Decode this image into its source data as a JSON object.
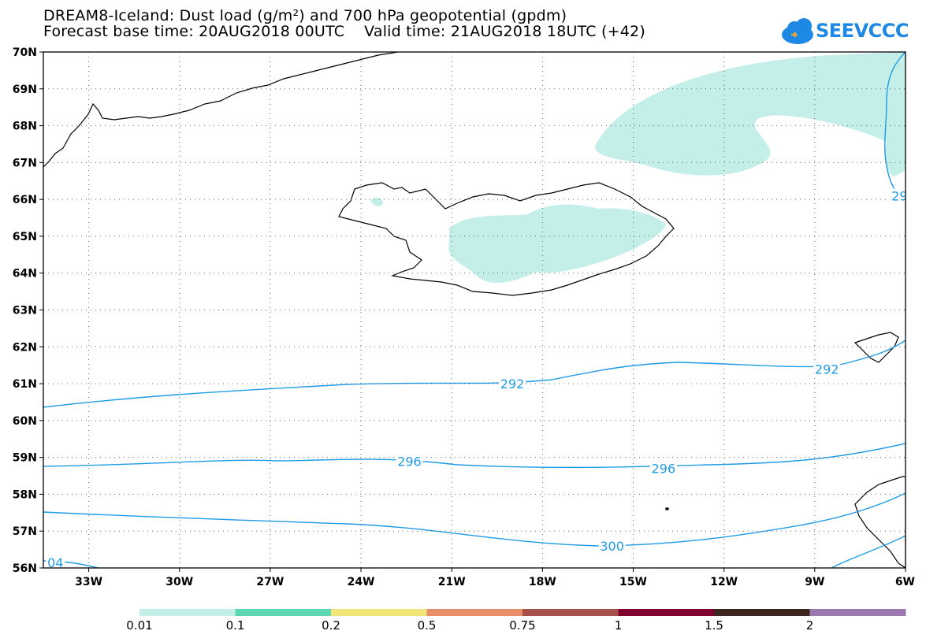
{
  "header": {
    "title_line1": "DREAM8-Iceland: Dust load (g/m²) and 700 hPa geopotential (gpdm)",
    "title_line2": "Forecast base time: 20AUG2018 00UTC    Valid time: 21AUG2018 18UTC (+42)"
  },
  "logo": {
    "text": "SEEVCCC",
    "icon": "cloud-icon",
    "color": "#1e88e5"
  },
  "map": {
    "lat_labels": [
      "70N",
      "69N",
      "68N",
      "67N",
      "66N",
      "65N",
      "64N",
      "63N",
      "62N",
      "61N",
      "60N",
      "59N",
      "58N",
      "57N",
      "56N"
    ],
    "lon_labels": [
      "33W",
      "30W",
      "27W",
      "24W",
      "21W",
      "18W",
      "15W",
      "12W",
      "9W",
      "6W"
    ],
    "contour_color": "#1e9be6",
    "dust_color": "#c4efe9",
    "contour_labels": [
      {
        "text": "292",
        "lon": -19.0,
        "lat": 61.0
      },
      {
        "text": "292",
        "lon": -8.6,
        "lat": 61.4
      },
      {
        "text": "296",
        "lon": -22.4,
        "lat": 58.9
      },
      {
        "text": "296",
        "lon": -14.0,
        "lat": 58.7
      },
      {
        "text": "300",
        "lon": -15.7,
        "lat": 56.6
      },
      {
        "text": "29",
        "lon": -6.2,
        "lat": 66.1
      },
      {
        "text": "04",
        "lon": -34.1,
        "lat": 56.15
      }
    ]
  },
  "colorbar": {
    "labels": [
      "0.01",
      "0.1",
      "0.2",
      "0.5",
      "0.75",
      "1",
      "1.5",
      "2"
    ],
    "colors": [
      "#c4efe9",
      "#5cd9b0",
      "#f0e67a",
      "#e8906a",
      "#a8504a",
      "#800030",
      "#3c2820",
      "#9c78b0"
    ]
  }
}
